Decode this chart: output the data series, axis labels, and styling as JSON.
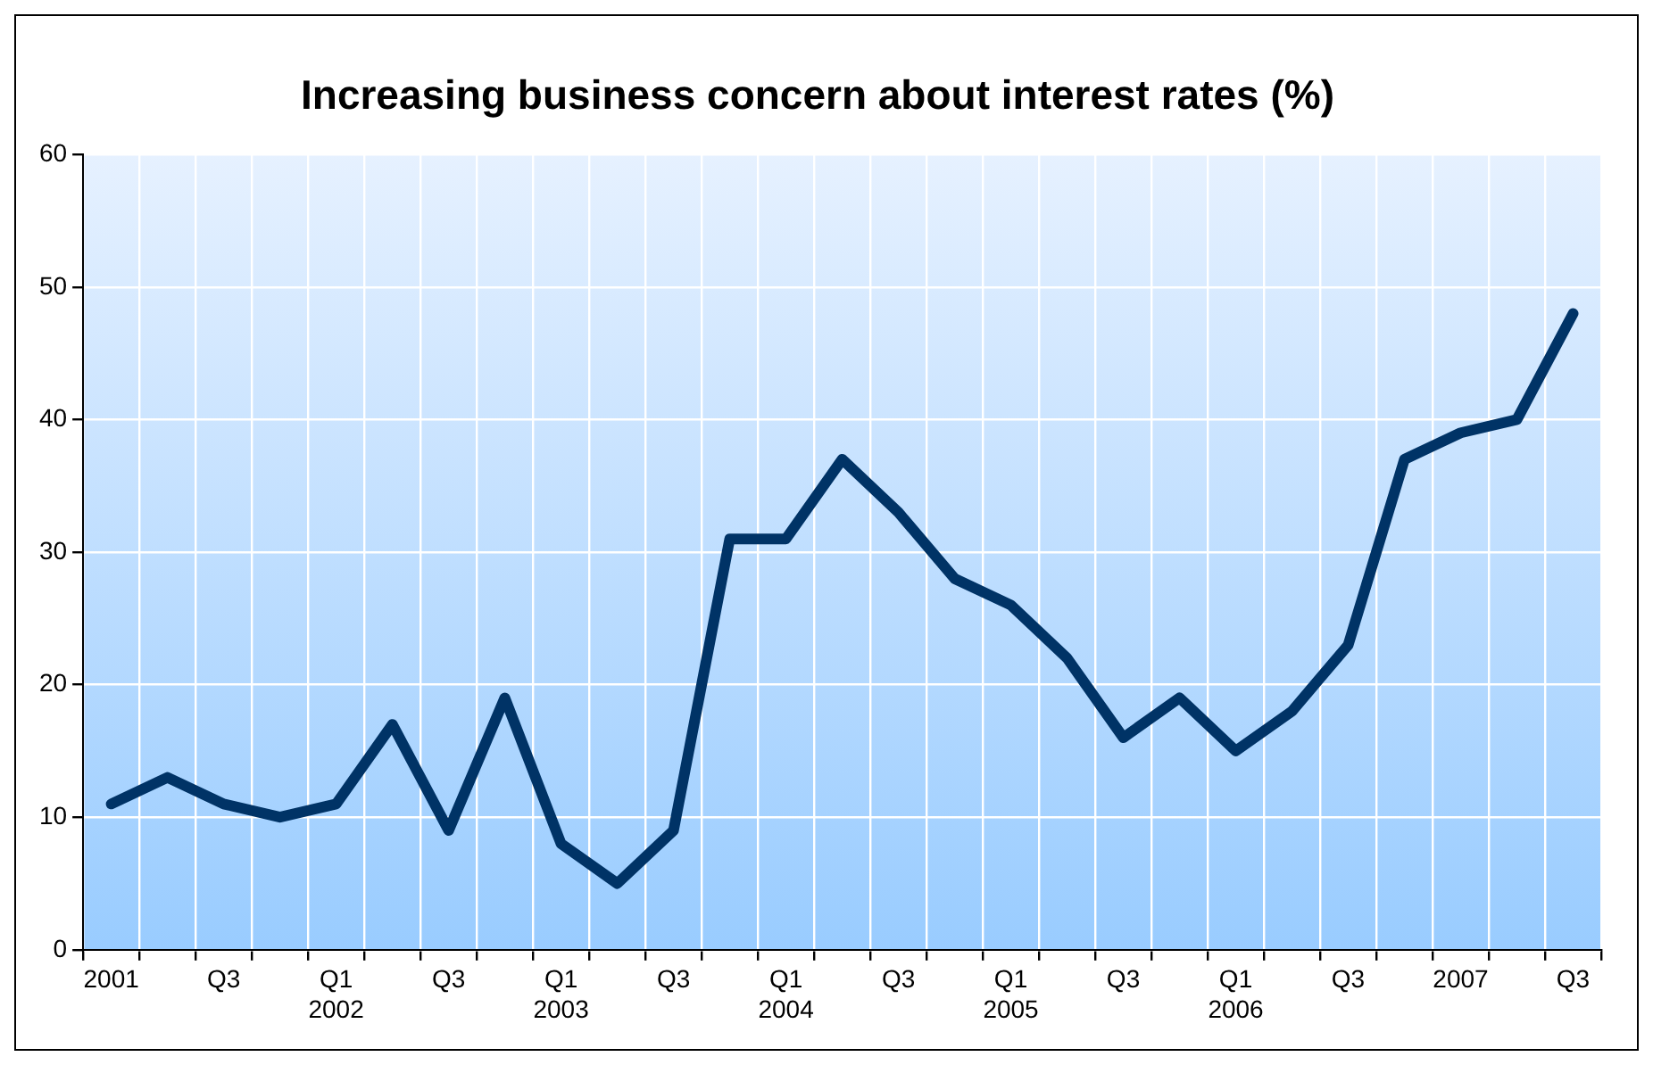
{
  "chart_data": {
    "type": "line",
    "title": "Increasing business concern about interest rates (%)",
    "categories": [
      "2001",
      null,
      "Q3",
      null,
      "Q1\n2002",
      null,
      "Q3",
      null,
      "Q1\n2003",
      null,
      "Q3",
      null,
      "Q1\n2004",
      null,
      "Q3",
      null,
      "Q1\n2005",
      null,
      "Q3",
      null,
      "Q1\n2006",
      null,
      "Q3",
      null,
      "2007",
      null,
      "Q3"
    ],
    "series": [
      {
        "color": "#003366",
        "values": [
          11,
          13,
          11,
          10,
          11,
          17,
          9,
          19,
          8,
          5,
          9,
          31,
          31,
          37,
          33,
          28,
          26,
          22,
          16,
          19,
          15,
          18,
          23,
          37,
          39,
          40,
          48
        ]
      }
    ],
    "ylim": [
      0,
      60
    ],
    "yticks": [
      0,
      10,
      20,
      30,
      40,
      50,
      60
    ],
    "grid": true,
    "legend": false,
    "marker": "none",
    "line_style": "solid"
  }
}
